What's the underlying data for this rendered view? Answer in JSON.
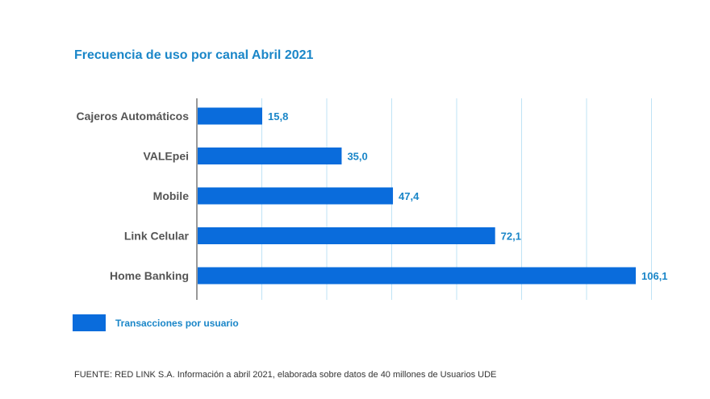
{
  "chart_data": {
    "type": "bar",
    "orientation": "horizontal",
    "title": "Frecuencia de uso por canal Abril 2021",
    "categories": [
      "Cajeros Automáticos",
      "VALEpei",
      "Mobile",
      "Link Celular",
      "Home Banking"
    ],
    "series": [
      {
        "name": "Transacciones por usuario",
        "values": [
          15.8,
          35.0,
          47.4,
          72.1,
          106.1
        ],
        "value_labels": [
          "15,8",
          "35,0",
          "47,4",
          "72,1",
          "106,1"
        ],
        "color": "#0a6cdc"
      }
    ],
    "xlim": [
      0,
      110
    ],
    "xlabel": "",
    "ylabel": "",
    "grid": true,
    "legend_position": "bottom-left"
  },
  "colors": {
    "accent": "#1a86c8",
    "bar": "#0a6cdc",
    "grid": "#bfe3f5",
    "axis": "#333333"
  },
  "footer": {
    "source": "FUENTE: RED LINK S.A. Información a abril 2021, elaborada sobre datos de 40 millones de Usuarios UDE"
  }
}
